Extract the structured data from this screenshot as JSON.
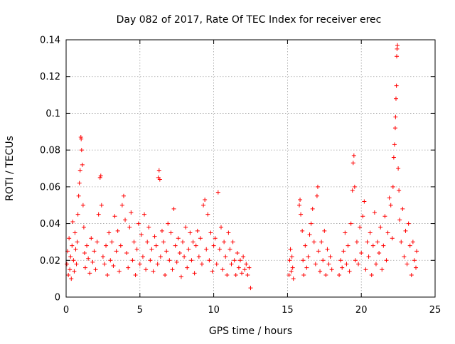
{
  "chart_data": {
    "type": "scatter",
    "title": "Day 082 of 2017, Rate Of TEC Index for receiver erec",
    "xlabel": "GPS time / hours",
    "ylabel": "ROTI / TECUs",
    "xlim": [
      0,
      25
    ],
    "ylim": [
      0,
      0.14
    ],
    "x_ticks": [
      0,
      5,
      10,
      15,
      20,
      25
    ],
    "x_tick_labels": [
      "0",
      "5",
      "10",
      "15",
      "20",
      "25"
    ],
    "y_ticks": [
      0,
      0.02,
      0.04,
      0.06,
      0.08,
      0.1,
      0.12,
      0.14
    ],
    "y_tick_labels": [
      "0",
      "0.02",
      "0.04",
      "0.06",
      "0.08",
      "0.1",
      "0.12",
      "0.14"
    ],
    "grid": true,
    "marker": "plus",
    "marker_color": "#ff0000",
    "points": [
      [
        0.05,
        0.018
      ],
      [
        0.1,
        0.025
      ],
      [
        0.15,
        0.012
      ],
      [
        0.2,
        0.032
      ],
      [
        0.25,
        0.015
      ],
      [
        0.3,
        0.022
      ],
      [
        0.35,
        0.01
      ],
      [
        0.4,
        0.028
      ],
      [
        0.45,
        0.041
      ],
      [
        0.5,
        0.02
      ],
      [
        0.55,
        0.014
      ],
      [
        0.6,
        0.035
      ],
      [
        0.65,
        0.026
      ],
      [
        0.7,
        0.018
      ],
      [
        0.75,
        0.03
      ],
      [
        0.8,
        0.045
      ],
      [
        0.85,
        0.055
      ],
      [
        0.9,
        0.062
      ],
      [
        0.95,
        0.069
      ],
      [
        1.0,
        0.087
      ],
      [
        1.02,
        0.086
      ],
      [
        1.05,
        0.08
      ],
      [
        1.1,
        0.072
      ],
      [
        1.15,
        0.05
      ],
      [
        1.2,
        0.038
      ],
      [
        1.25,
        0.024
      ],
      [
        1.3,
        0.016
      ],
      [
        1.4,
        0.028
      ],
      [
        1.5,
        0.021
      ],
      [
        1.6,
        0.013
      ],
      [
        1.7,
        0.032
      ],
      [
        1.8,
        0.019
      ],
      [
        1.9,
        0.025
      ],
      [
        2.0,
        0.015
      ],
      [
        2.1,
        0.03
      ],
      [
        2.2,
        0.045
      ],
      [
        2.3,
        0.065
      ],
      [
        2.35,
        0.066
      ],
      [
        2.4,
        0.05
      ],
      [
        2.5,
        0.022
      ],
      [
        2.6,
        0.018
      ],
      [
        2.7,
        0.028
      ],
      [
        2.8,
        0.012
      ],
      [
        2.9,
        0.035
      ],
      [
        3.0,
        0.02
      ],
      [
        3.1,
        0.03
      ],
      [
        3.2,
        0.017
      ],
      [
        3.3,
        0.044
      ],
      [
        3.4,
        0.025
      ],
      [
        3.5,
        0.036
      ],
      [
        3.6,
        0.014
      ],
      [
        3.7,
        0.028
      ],
      [
        3.8,
        0.05
      ],
      [
        3.9,
        0.055
      ],
      [
        4.0,
        0.042
      ],
      [
        4.1,
        0.024
      ],
      [
        4.2,
        0.016
      ],
      [
        4.3,
        0.038
      ],
      [
        4.4,
        0.046
      ],
      [
        4.5,
        0.02
      ],
      [
        4.6,
        0.03
      ],
      [
        4.7,
        0.012
      ],
      [
        4.8,
        0.026
      ],
      [
        4.9,
        0.04
      ],
      [
        5.0,
        0.018
      ],
      [
        5.1,
        0.034
      ],
      [
        5.2,
        0.022
      ],
      [
        5.3,
        0.045
      ],
      [
        5.4,
        0.015
      ],
      [
        5.5,
        0.03
      ],
      [
        5.6,
        0.038
      ],
      [
        5.7,
        0.02
      ],
      [
        5.8,
        0.026
      ],
      [
        5.9,
        0.014
      ],
      [
        6.0,
        0.033
      ],
      [
        6.1,
        0.028
      ],
      [
        6.2,
        0.018
      ],
      [
        6.25,
        0.065
      ],
      [
        6.3,
        0.069
      ],
      [
        6.35,
        0.064
      ],
      [
        6.4,
        0.022
      ],
      [
        6.5,
        0.036
      ],
      [
        6.6,
        0.03
      ],
      [
        6.7,
        0.012
      ],
      [
        6.8,
        0.025
      ],
      [
        6.9,
        0.04
      ],
      [
        7.0,
        0.02
      ],
      [
        7.1,
        0.035
      ],
      [
        7.2,
        0.015
      ],
      [
        7.3,
        0.048
      ],
      [
        7.4,
        0.028
      ],
      [
        7.5,
        0.019
      ],
      [
        7.6,
        0.032
      ],
      [
        7.7,
        0.024
      ],
      [
        7.8,
        0.011
      ],
      [
        7.9,
        0.03
      ],
      [
        8.0,
        0.022
      ],
      [
        8.1,
        0.038
      ],
      [
        8.2,
        0.016
      ],
      [
        8.3,
        0.026
      ],
      [
        8.4,
        0.035
      ],
      [
        8.5,
        0.02
      ],
      [
        8.6,
        0.03
      ],
      [
        8.7,
        0.013
      ],
      [
        8.8,
        0.028
      ],
      [
        8.9,
        0.036
      ],
      [
        9.0,
        0.022
      ],
      [
        9.1,
        0.032
      ],
      [
        9.2,
        0.018
      ],
      [
        9.3,
        0.05
      ],
      [
        9.4,
        0.053
      ],
      [
        9.5,
        0.026
      ],
      [
        9.6,
        0.045
      ],
      [
        9.7,
        0.02
      ],
      [
        9.8,
        0.035
      ],
      [
        9.9,
        0.014
      ],
      [
        10.0,
        0.028
      ],
      [
        10.1,
        0.032
      ],
      [
        10.2,
        0.018
      ],
      [
        10.3,
        0.057
      ],
      [
        10.4,
        0.026
      ],
      [
        10.5,
        0.038
      ],
      [
        10.6,
        0.015
      ],
      [
        10.7,
        0.03
      ],
      [
        10.8,
        0.022
      ],
      [
        10.9,
        0.012
      ],
      [
        11.0,
        0.035
      ],
      [
        11.1,
        0.026
      ],
      [
        11.2,
        0.018
      ],
      [
        11.3,
        0.03
      ],
      [
        11.4,
        0.02
      ],
      [
        11.5,
        0.012
      ],
      [
        11.6,
        0.024
      ],
      [
        11.7,
        0.016
      ],
      [
        11.8,
        0.02
      ],
      [
        11.9,
        0.013
      ],
      [
        12.0,
        0.022
      ],
      [
        12.1,
        0.015
      ],
      [
        12.2,
        0.018
      ],
      [
        12.3,
        0.012
      ],
      [
        12.4,
        0.016
      ],
      [
        12.5,
        0.005
      ],
      [
        15.1,
        0.012
      ],
      [
        15.15,
        0.02
      ],
      [
        15.2,
        0.026
      ],
      [
        15.25,
        0.014
      ],
      [
        15.3,
        0.022
      ],
      [
        15.35,
        0.016
      ],
      [
        15.4,
        0.01
      ],
      [
        15.8,
        0.05
      ],
      [
        15.85,
        0.053
      ],
      [
        15.9,
        0.045
      ],
      [
        16.0,
        0.036
      ],
      [
        16.05,
        0.02
      ],
      [
        16.1,
        0.012
      ],
      [
        16.2,
        0.028
      ],
      [
        16.3,
        0.016
      ],
      [
        16.4,
        0.022
      ],
      [
        16.5,
        0.034
      ],
      [
        16.6,
        0.04
      ],
      [
        16.7,
        0.048
      ],
      [
        16.8,
        0.03
      ],
      [
        16.9,
        0.018
      ],
      [
        17.0,
        0.055
      ],
      [
        17.05,
        0.06
      ],
      [
        17.1,
        0.025
      ],
      [
        17.2,
        0.014
      ],
      [
        17.3,
        0.03
      ],
      [
        17.4,
        0.02
      ],
      [
        17.5,
        0.036
      ],
      [
        17.6,
        0.012
      ],
      [
        17.7,
        0.026
      ],
      [
        17.8,
        0.018
      ],
      [
        17.9,
        0.022
      ],
      [
        18.0,
        0.015
      ],
      [
        18.5,
        0.012
      ],
      [
        18.6,
        0.02
      ],
      [
        18.7,
        0.016
      ],
      [
        18.8,
        0.025
      ],
      [
        18.9,
        0.035
      ],
      [
        19.0,
        0.018
      ],
      [
        19.1,
        0.028
      ],
      [
        19.2,
        0.014
      ],
      [
        19.3,
        0.04
      ],
      [
        19.4,
        0.058
      ],
      [
        19.45,
        0.073
      ],
      [
        19.5,
        0.077
      ],
      [
        19.55,
        0.06
      ],
      [
        19.6,
        0.02
      ],
      [
        19.7,
        0.03
      ],
      [
        19.8,
        0.018
      ],
      [
        19.9,
        0.038
      ],
      [
        20.0,
        0.024
      ],
      [
        20.1,
        0.044
      ],
      [
        20.2,
        0.052
      ],
      [
        20.3,
        0.015
      ],
      [
        20.4,
        0.03
      ],
      [
        20.5,
        0.022
      ],
      [
        20.6,
        0.035
      ],
      [
        20.7,
        0.012
      ],
      [
        20.8,
        0.028
      ],
      [
        20.9,
        0.046
      ],
      [
        21.0,
        0.018
      ],
      [
        21.1,
        0.03
      ],
      [
        21.2,
        0.024
      ],
      [
        21.3,
        0.038
      ],
      [
        21.4,
        0.015
      ],
      [
        21.5,
        0.028
      ],
      [
        21.6,
        0.044
      ],
      [
        21.7,
        0.02
      ],
      [
        21.8,
        0.035
      ],
      [
        21.9,
        0.054
      ],
      [
        22.0,
        0.05
      ],
      [
        22.1,
        0.032
      ],
      [
        22.15,
        0.06
      ],
      [
        22.2,
        0.076
      ],
      [
        22.25,
        0.083
      ],
      [
        22.3,
        0.092
      ],
      [
        22.32,
        0.098
      ],
      [
        22.35,
        0.108
      ],
      [
        22.38,
        0.115
      ],
      [
        22.4,
        0.131
      ],
      [
        22.42,
        0.135
      ],
      [
        22.45,
        0.137
      ],
      [
        22.5,
        0.07
      ],
      [
        22.55,
        0.058
      ],
      [
        22.6,
        0.042
      ],
      [
        22.7,
        0.03
      ],
      [
        22.8,
        0.048
      ],
      [
        22.9,
        0.022
      ],
      [
        23.0,
        0.036
      ],
      [
        23.1,
        0.018
      ],
      [
        23.2,
        0.04
      ],
      [
        23.3,
        0.028
      ],
      [
        23.4,
        0.012
      ],
      [
        23.5,
        0.03
      ],
      [
        23.6,
        0.02
      ],
      [
        23.7,
        0.016
      ],
      [
        23.75,
        0.025
      ]
    ]
  }
}
